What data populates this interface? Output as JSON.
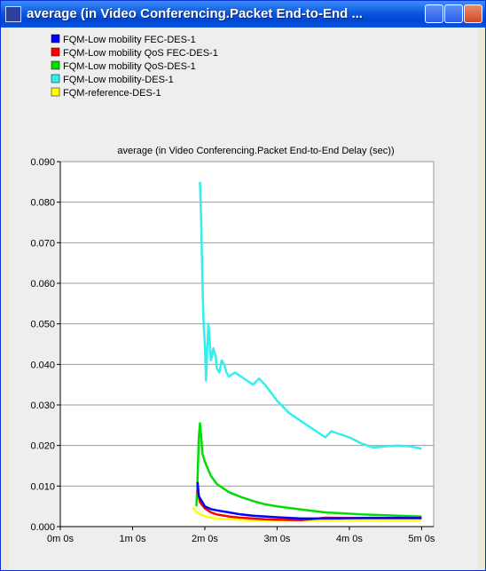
{
  "window": {
    "title": "average (in Video Conferencing.Packet End-to-End ...",
    "buttons": [
      "minimize",
      "maximize",
      "close"
    ]
  },
  "colors": {
    "titlebar": "#0a5ae3",
    "plot_bg": "#ffffff",
    "panel_bg": "#eeeeee"
  },
  "chart_data": {
    "type": "line",
    "title": "average (in Video Conferencing.Packet End-to-End Delay (sec))",
    "xlabel": "",
    "ylabel": "",
    "xlim": [
      0,
      310
    ],
    "ylim": [
      0,
      0.09
    ],
    "xticks": [
      0,
      60,
      120,
      180,
      240,
      300
    ],
    "xtick_labels": [
      "0m 0s",
      "1m 0s",
      "2m 0s",
      "3m 0s",
      "4m 0s",
      "5m 0s"
    ],
    "yticks": [
      0,
      0.01,
      0.02,
      0.03,
      0.04,
      0.05,
      0.06,
      0.07,
      0.08,
      0.09
    ],
    "ytick_labels": [
      "0.000",
      "0.010",
      "0.020",
      "0.030",
      "0.040",
      "0.050",
      "0.060",
      "0.070",
      "0.080",
      "0.090"
    ],
    "grid": true,
    "legend_position": "top-left",
    "series": [
      {
        "name": "FQM-Low mobility FEC-DES-1",
        "color": "#0000ff",
        "x": [
          114,
          115,
          118,
          120,
          125,
          130,
          140,
          150,
          160,
          170,
          180,
          200,
          220,
          250,
          280,
          300
        ],
        "y": [
          0.011,
          0.0075,
          0.006,
          0.005,
          0.0043,
          0.004,
          0.0035,
          0.003,
          0.0027,
          0.0025,
          0.0023,
          0.002,
          0.002,
          0.0021,
          0.0021,
          0.0021
        ]
      },
      {
        "name": "FQM-Low mobility QoS FEC-DES-1",
        "color": "#ff0000",
        "x": [
          114,
          116,
          120,
          125,
          130,
          140,
          150,
          160,
          170,
          180,
          200,
          220,
          250,
          280,
          300
        ],
        "y": [
          0.009,
          0.006,
          0.0045,
          0.0035,
          0.003,
          0.0025,
          0.0022,
          0.002,
          0.0018,
          0.0017,
          0.0016,
          0.0022,
          0.0021,
          0.0021,
          0.0021
        ]
      },
      {
        "name": "FQM-Low mobility QoS-DES-1",
        "color": "#00dd00",
        "x": [
          113,
          114,
          115,
          116,
          117,
          118,
          120,
          125,
          130,
          140,
          150,
          160,
          170,
          180,
          200,
          220,
          250,
          280,
          300
        ],
        "y": [
          0.005,
          0.012,
          0.022,
          0.0255,
          0.022,
          0.018,
          0.016,
          0.0125,
          0.0105,
          0.0085,
          0.0073,
          0.0063,
          0.0055,
          0.005,
          0.0042,
          0.0035,
          0.003,
          0.0027,
          0.0025
        ]
      },
      {
        "name": "FQM-Low mobility-DES-1",
        "color": "#33eeee",
        "x": [
          116,
          117,
          118,
          119,
          120,
          121,
          122,
          123,
          124,
          125,
          126,
          127,
          128,
          129,
          130,
          132,
          134,
          136,
          138,
          140,
          145,
          150,
          155,
          160,
          165,
          170,
          175,
          180,
          190,
          200,
          210,
          220,
          225,
          230,
          240,
          250,
          260,
          270,
          280,
          290,
          300
        ],
        "y": [
          0.085,
          0.075,
          0.06,
          0.05,
          0.045,
          0.036,
          0.044,
          0.05,
          0.046,
          0.041,
          0.042,
          0.044,
          0.043,
          0.042,
          0.039,
          0.038,
          0.041,
          0.04,
          0.038,
          0.037,
          0.038,
          0.037,
          0.036,
          0.035,
          0.0365,
          0.035,
          0.033,
          0.031,
          0.028,
          0.026,
          0.024,
          0.022,
          0.0235,
          0.023,
          0.022,
          0.0205,
          0.0195,
          0.0198,
          0.02,
          0.0198,
          0.0192
        ]
      },
      {
        "name": "FQM-reference-DES-1",
        "color": "#ffff00",
        "x": [
          110,
          112,
          114,
          116,
          118,
          120,
          125,
          130,
          140,
          150,
          160,
          170,
          180,
          200,
          220,
          250,
          280,
          300
        ],
        "y": [
          0.0048,
          0.004,
          0.0035,
          0.003,
          0.0028,
          0.0026,
          0.0022,
          0.002,
          0.0018,
          0.0017,
          0.0016,
          0.0016,
          0.0016,
          0.0016,
          0.0016,
          0.0016,
          0.0016,
          0.0016
        ]
      }
    ]
  }
}
